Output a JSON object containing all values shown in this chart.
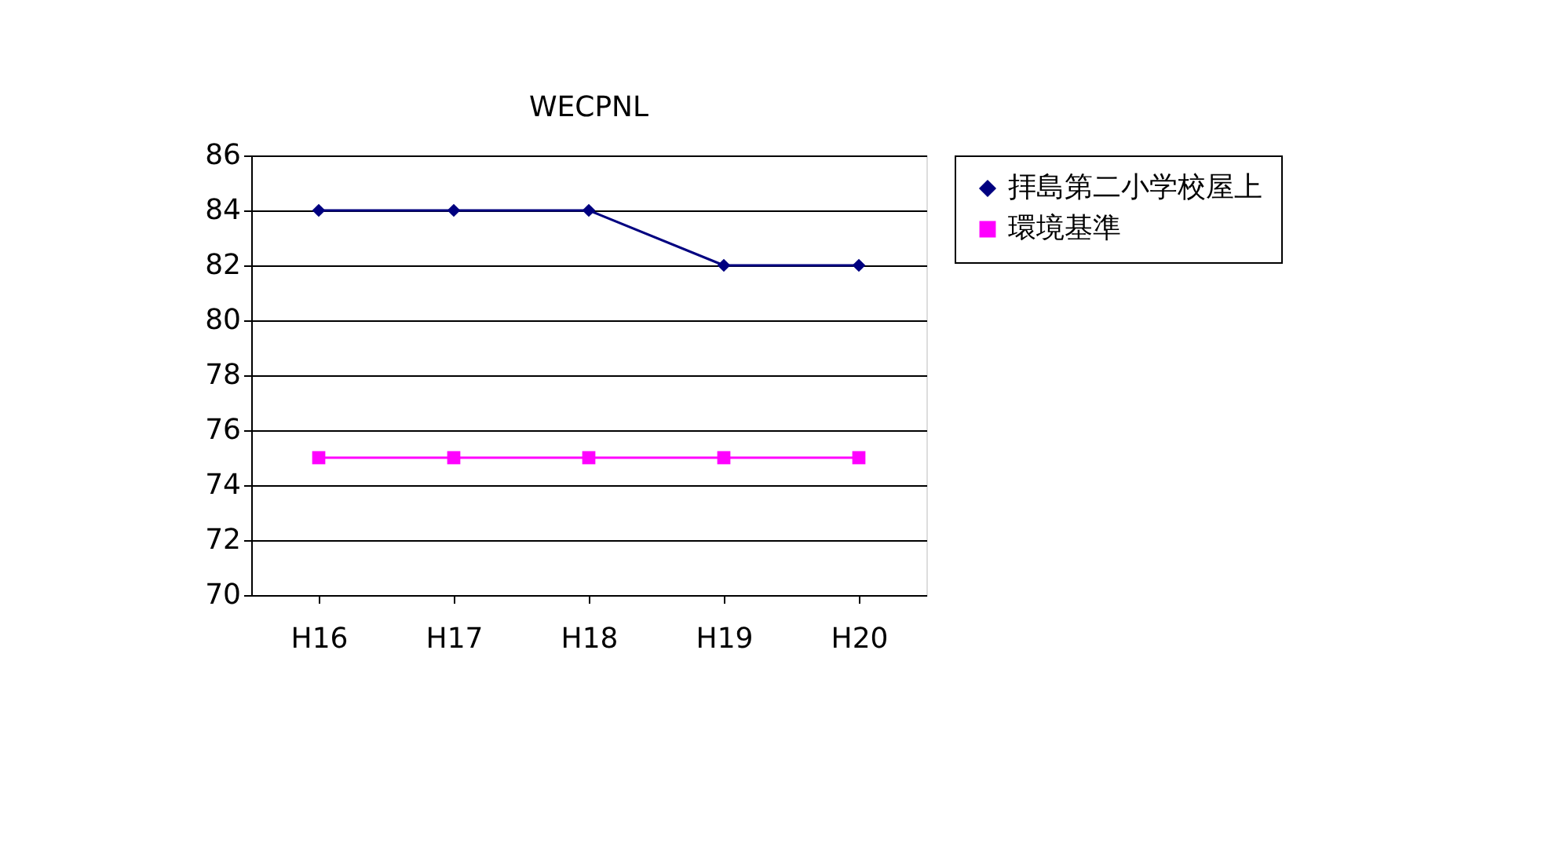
{
  "chart_data": {
    "type": "line",
    "title": "WECPNL",
    "categories": [
      "H16",
      "H17",
      "H18",
      "H19",
      "H20"
    ],
    "series": [
      {
        "name": "拝島第二小学校屋上",
        "color": "#000080",
        "marker": "diamond",
        "values": [
          84,
          84,
          84,
          82,
          82
        ]
      },
      {
        "name": "環境基準",
        "color": "#ff00ff",
        "marker": "square",
        "values": [
          75,
          75,
          75,
          75,
          75
        ]
      }
    ],
    "ylim": [
      70,
      86
    ],
    "yticks": [
      70,
      72,
      74,
      76,
      78,
      80,
      82,
      84,
      86
    ],
    "grid": "y",
    "legend": "right"
  }
}
